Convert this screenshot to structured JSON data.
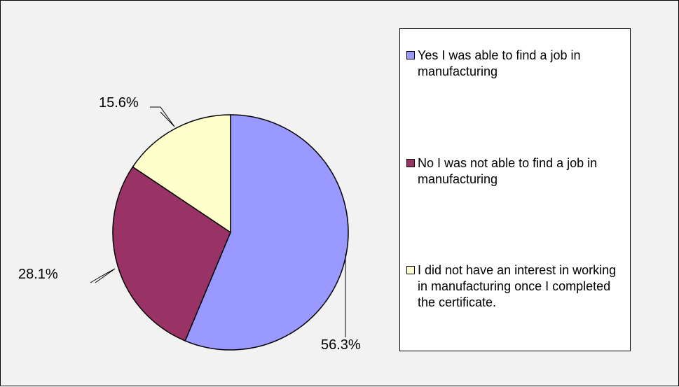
{
  "chart_data": {
    "type": "pie",
    "title": "",
    "slices": [
      {
        "label": "Yes I was able to find a job in manufacturing",
        "value": 56.3,
        "value_label": "56.3%",
        "color": "#9999ff"
      },
      {
        "label": "No I was not able to find a job in manufacturing",
        "value": 28.1,
        "value_label": "28.1%",
        "color": "#993366"
      },
      {
        "label": "I did not have an interest in working in manufacturing once I completed the certificate.",
        "value": 15.6,
        "value_label": "15.6%",
        "color": "#ffffcc"
      }
    ],
    "legend_position": "right",
    "start_angle": "12 o'clock",
    "direction": "clockwise"
  }
}
